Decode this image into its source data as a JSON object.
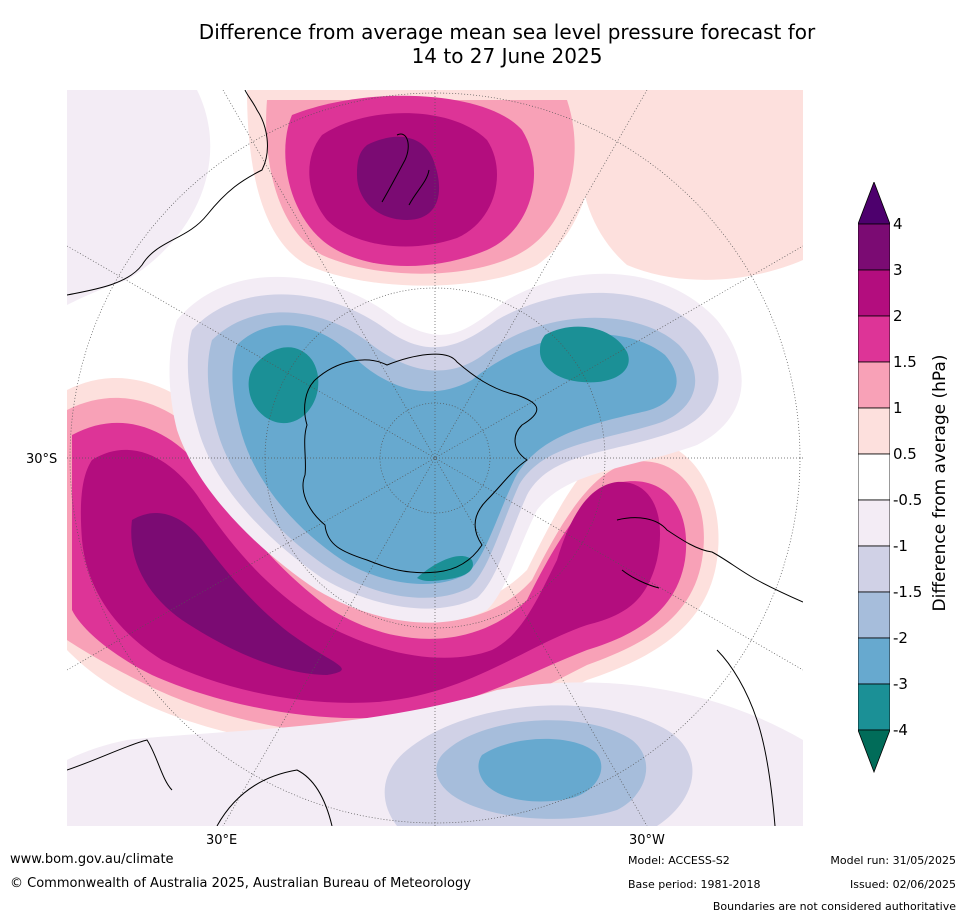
{
  "title": {
    "line1": "Difference from average mean sea level pressure forecast for",
    "line2": "14 to 27 June 2025"
  },
  "map": {
    "projection": "south-polar-stereographic",
    "lat_label": "30°S",
    "lon_labels": {
      "east": "30°E",
      "west": "30°W"
    }
  },
  "colorbar": {
    "title": "Difference from average (hPa)",
    "ticks": [
      "4",
      "3",
      "2",
      "1.5",
      "1",
      "0.5",
      "-0.5",
      "-1",
      "-1.5",
      "-2",
      "-3",
      "-4"
    ],
    "bins": [
      {
        "range": "3 to 4",
        "color": "#7b0b73"
      },
      {
        "range": "2 to 3",
        "color": "#b30d7e"
      },
      {
        "range": "1.5 to 2",
        "color": "#dd3497"
      },
      {
        "range": "1 to 1.5",
        "color": "#f8a1b7"
      },
      {
        "range": "0.5 to 1",
        "color": "#fde0dd"
      },
      {
        "range": "-0.5 to 0.5",
        "color": "#ffffff"
      },
      {
        "range": "-1 to -0.5",
        "color": "#f3ecf5"
      },
      {
        "range": "-1.5 to -1",
        "color": "#d0d1e6"
      },
      {
        "range": "-2 to -1.5",
        "color": "#a6bddb"
      },
      {
        "range": "-3 to -2",
        "color": "#67a9cf"
      },
      {
        "range": "-4 to -3",
        "color": "#1b9096"
      }
    ],
    "over_color": "#4d006d",
    "under_color": "#016c59"
  },
  "footer": {
    "website": "www.bom.gov.au/climate",
    "copyright": "© Commonwealth of Australia 2025, Australian Bureau of Meteorology",
    "model": "Model: ACCESS-S2",
    "base_period": "Base period: 1981-2018",
    "model_run": "Model run: 31/05/2025",
    "issued": "Issued: 02/06/2025",
    "disclaimer": "Boundaries are not considered authoritative"
  }
}
